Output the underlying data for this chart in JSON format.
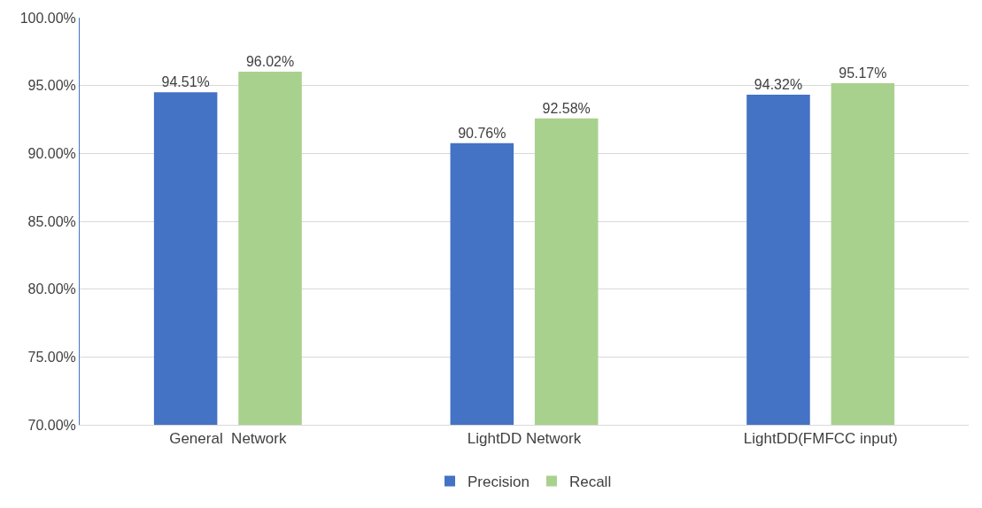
{
  "chart_data": {
    "type": "bar",
    "categories": [
      "General  Network",
      "LightDD Network",
      "LightDD(FMFCC input)"
    ],
    "series": [
      {
        "name": "Precision",
        "color": "#4472c4",
        "values": [
          94.51,
          90.76,
          94.32
        ],
        "value_labels": [
          "94.51%",
          "90.76%",
          "94.32%"
        ]
      },
      {
        "name": "Recall",
        "color": "#a9d18e",
        "values": [
          96.02,
          92.58,
          95.17
        ],
        "value_labels": [
          "96.02%",
          "92.58%",
          "95.17%"
        ]
      }
    ],
    "ylim": [
      70,
      100
    ],
    "yticks": [
      {
        "value": 70,
        "label": "70.00%"
      },
      {
        "value": 75,
        "label": "75.00%"
      },
      {
        "value": 80,
        "label": "80.00%"
      },
      {
        "value": 85,
        "label": "85.00%"
      },
      {
        "value": 90,
        "label": "90.00%"
      },
      {
        "value": 95,
        "label": "95.00%"
      },
      {
        "value": 100,
        "label": "100.00%"
      }
    ],
    "grid": "y",
    "legend": "bottom"
  }
}
